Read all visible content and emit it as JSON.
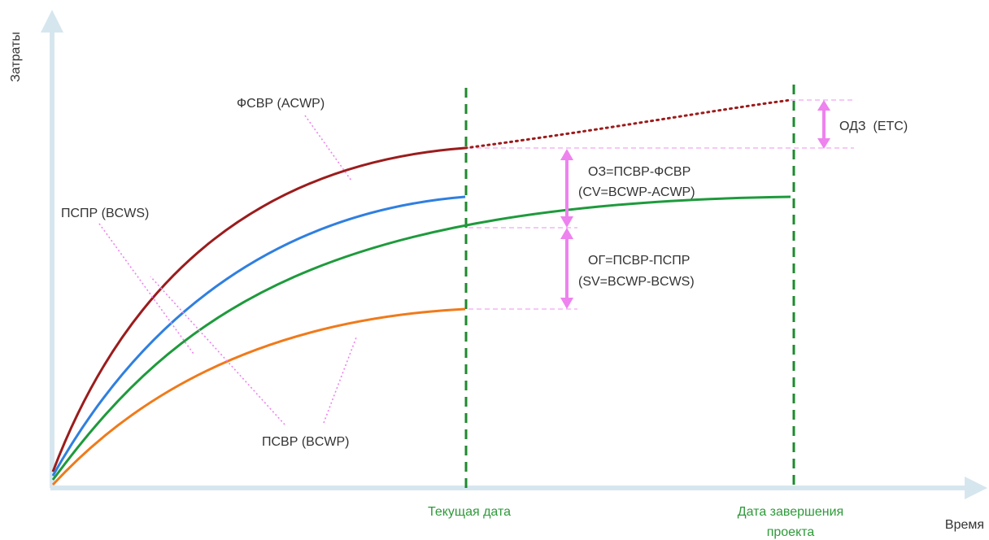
{
  "axes": {
    "y_label": "Затраты",
    "x_label": "Время"
  },
  "markers": {
    "current_date": "Текущая дата",
    "completion_date_line1": "Дата завершения",
    "completion_date_line2": "проекта"
  },
  "curves": {
    "acwp": {
      "label": "ФСВР (ACWP)",
      "color": "#9b1c1c"
    },
    "bcws": {
      "label": "ПСПР (BCWS)",
      "color": "#2f7fe0"
    },
    "bcwp": {
      "label": "ПСВР (BCWP)",
      "color": "#1e9a3c"
    },
    "orange": {
      "color": "#f07a1a"
    }
  },
  "annotations": {
    "etc": "ОДЗ  (ETC)",
    "cv_line1": "ОЗ=ПСВР-ФСВР",
    "cv_line2": "(CV=BCWP-ACWP)",
    "sv_line1": "ОГ=ПСВР-ПСПР",
    "sv_line2": "(SV=BCWP-BCWS)"
  },
  "colors": {
    "axis": "#d6e6ee",
    "marker_line": "#1e8a2e",
    "marker_text": "#2e9a3a",
    "pointer": "#ee82ee",
    "guide": "#f0a8f0"
  }
}
